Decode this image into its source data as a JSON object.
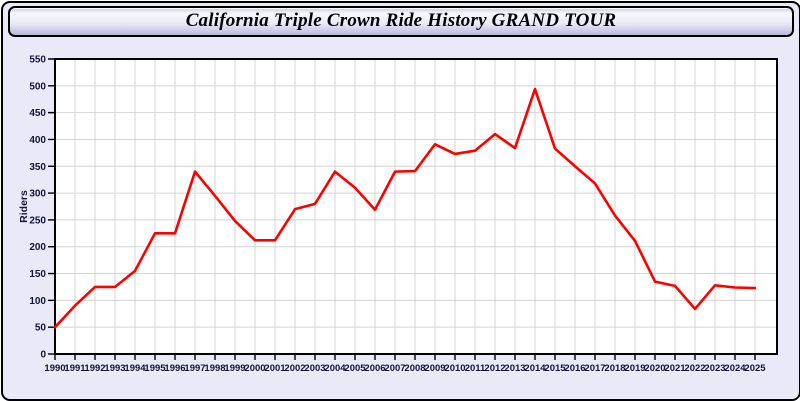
{
  "window": {
    "title": "California Triple Crown Ride History GRAND TOUR"
  },
  "colors": {
    "page_bg": "#e9e9f8",
    "plot_bg": "#ffffff",
    "plot_border": "#000000",
    "grid": "#d4d4d4",
    "tick_label": "#14143c",
    "axis_title": "#14143c",
    "line": "#ff0000"
  },
  "chart_data": {
    "type": "line",
    "title": "California Triple Crown Ride History GRAND TOUR",
    "xlabel": "",
    "ylabel": "Riders",
    "x": [
      1990,
      1991,
      1992,
      1993,
      1994,
      1995,
      1996,
      1997,
      1998,
      1999,
      2000,
      2001,
      2002,
      2003,
      2004,
      2005,
      2006,
      2007,
      2008,
      2009,
      2010,
      2011,
      2012,
      2013,
      2014,
      2015,
      2016,
      2017,
      2018,
      2019,
      2020,
      2021,
      2022,
      2023,
      2024,
      2025
    ],
    "series": [
      {
        "name": "Riders",
        "color": "#ff0000",
        "values": [
          50,
          90,
          125,
          125,
          155,
          225,
          225,
          340,
          295,
          248,
          212,
          212,
          270,
          280,
          340,
          310,
          269,
          340,
          341,
          391,
          373,
          379,
          410,
          384,
          494,
          383,
          350,
          318,
          258,
          211,
          135,
          127,
          84,
          128,
          124,
          123
        ]
      }
    ],
    "ylim": [
      0,
      550
    ],
    "ytick_step": 50,
    "grid": true,
    "legend": "none"
  }
}
